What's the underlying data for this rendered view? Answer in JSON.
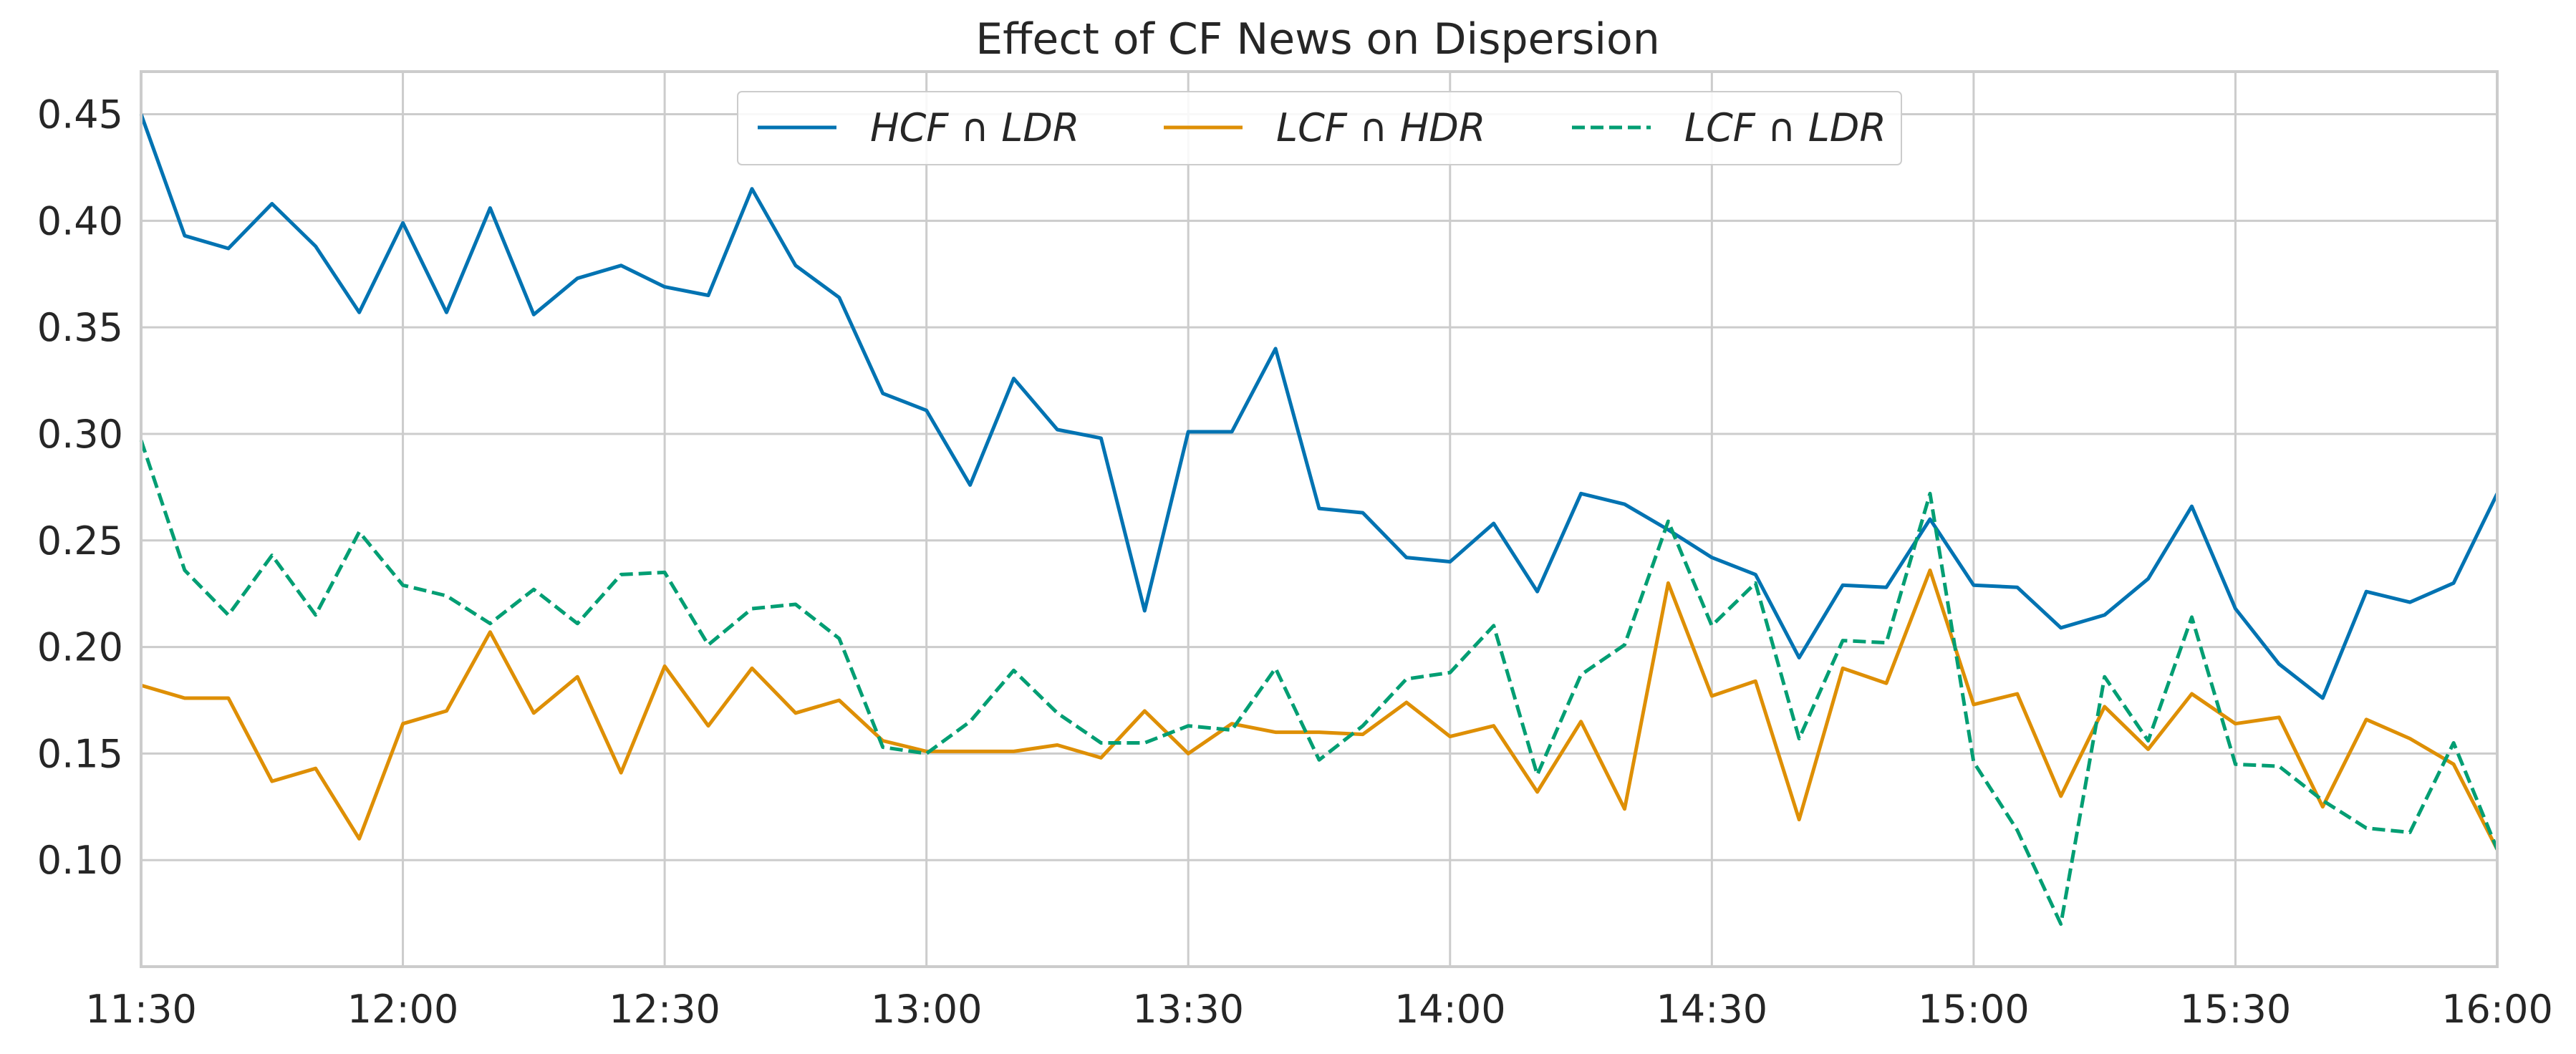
{
  "chart_data": {
    "type": "line",
    "title": "Effect of CF News on Dispersion",
    "xlabel": "",
    "ylabel": "",
    "x_tick_labels": [
      "11:30",
      "12:00",
      "12:30",
      "13:00",
      "13:30",
      "14:00",
      "14:30",
      "15:00",
      "15:30",
      "16:00"
    ],
    "y_tick_labels": [
      "0.10",
      "0.15",
      "0.20",
      "0.25",
      "0.30",
      "0.35",
      "0.40",
      "0.45"
    ],
    "x_range": [
      "11:30",
      "16:00"
    ],
    "ylim": [
      0.05,
      0.47
    ],
    "grid": true,
    "legend_position": "top-center",
    "x": [
      "11:30",
      "11:35",
      "11:40",
      "11:45",
      "11:50",
      "11:55",
      "12:00",
      "12:05",
      "12:10",
      "12:15",
      "12:20",
      "12:25",
      "12:30",
      "12:35",
      "12:40",
      "12:45",
      "12:50",
      "12:55",
      "13:00",
      "13:05",
      "13:10",
      "13:15",
      "13:20",
      "13:25",
      "13:30",
      "13:35",
      "13:40",
      "13:45",
      "13:50",
      "13:55",
      "14:00",
      "14:05",
      "14:10",
      "14:15",
      "14:20",
      "14:25",
      "14:30",
      "14:35",
      "14:40",
      "14:45",
      "14:50",
      "14:55",
      "15:00",
      "15:05",
      "15:10",
      "15:15",
      "15:20",
      "15:25",
      "15:30",
      "15:35",
      "15:40",
      "15:45",
      "15:50",
      "15:55",
      "16:00"
    ],
    "series": [
      {
        "name": "HCF ∩ LDR",
        "color": "#0173b2",
        "style": "solid",
        "values": [
          0.45,
          0.393,
          0.387,
          0.408,
          0.388,
          0.357,
          0.399,
          0.357,
          0.406,
          0.356,
          0.373,
          0.379,
          0.369,
          0.365,
          0.415,
          0.379,
          0.364,
          0.319,
          0.311,
          0.276,
          0.326,
          0.302,
          0.298,
          0.217,
          0.301,
          0.301,
          0.34,
          0.265,
          0.263,
          0.242,
          0.24,
          0.258,
          0.226,
          0.272,
          0.267,
          0.255,
          0.242,
          0.234,
          0.195,
          0.229,
          0.228,
          0.26,
          0.229,
          0.228,
          0.209,
          0.215,
          0.232,
          0.266,
          0.218,
          0.192,
          0.176,
          0.226,
          0.221,
          0.23,
          0.272
        ]
      },
      {
        "name": "LCF ∩ HDR",
        "color": "#de8f05",
        "style": "solid",
        "values": [
          0.182,
          0.176,
          0.176,
          0.137,
          0.143,
          0.11,
          0.164,
          0.17,
          0.207,
          0.169,
          0.186,
          0.141,
          0.191,
          0.163,
          0.19,
          0.169,
          0.175,
          0.156,
          0.151,
          0.151,
          0.151,
          0.154,
          0.148,
          0.17,
          0.15,
          0.164,
          0.16,
          0.16,
          0.159,
          0.174,
          0.158,
          0.163,
          0.132,
          0.165,
          0.124,
          0.23,
          0.177,
          0.184,
          0.119,
          0.19,
          0.183,
          0.236,
          0.173,
          0.178,
          0.13,
          0.172,
          0.152,
          0.178,
          0.164,
          0.167,
          0.125,
          0.166,
          0.157,
          0.145,
          0.105
        ]
      },
      {
        "name": "LCF ∩ LDR",
        "color": "#029e73",
        "style": "dashed",
        "values": [
          0.297,
          0.236,
          0.215,
          0.243,
          0.215,
          0.254,
          0.229,
          0.224,
          0.211,
          0.227,
          0.211,
          0.234,
          0.235,
          0.201,
          0.218,
          0.22,
          0.204,
          0.153,
          0.15,
          0.165,
          0.189,
          0.169,
          0.155,
          0.155,
          0.163,
          0.161,
          0.19,
          0.147,
          0.163,
          0.185,
          0.188,
          0.21,
          0.14,
          0.187,
          0.201,
          0.259,
          0.21,
          0.23,
          0.157,
          0.203,
          0.202,
          0.272,
          0.146,
          0.114,
          0.07,
          0.186,
          0.156,
          0.214,
          0.145,
          0.144,
          0.128,
          0.115,
          0.113,
          0.155,
          0.105
        ]
      }
    ]
  }
}
